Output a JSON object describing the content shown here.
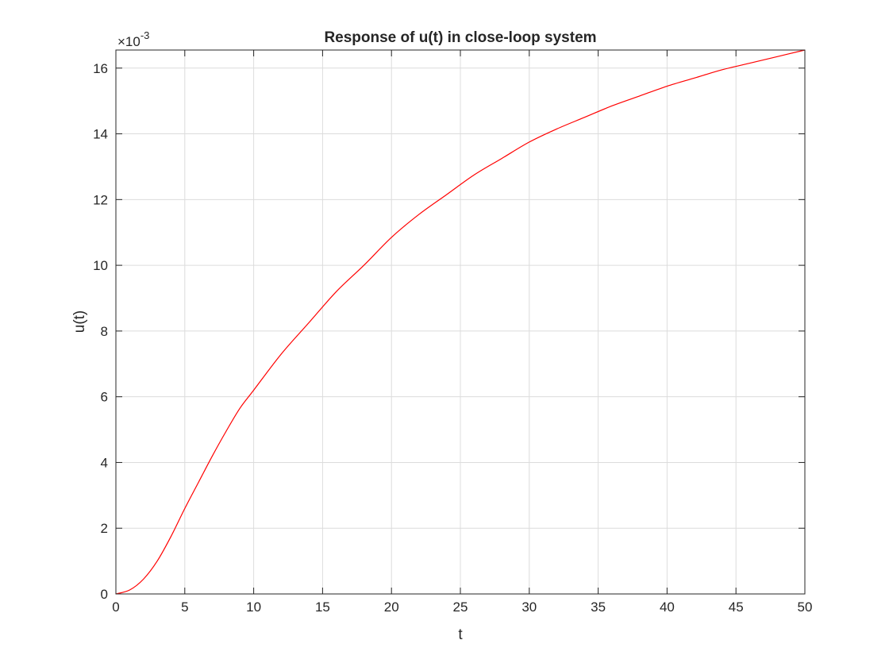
{
  "chart_data": {
    "type": "line",
    "title": "Response of u(t) in close-loop system",
    "xlabel": "t",
    "ylabel": "u(t)",
    "y_exponent_label": "×10",
    "y_exponent_power": "-3",
    "xlim": [
      0,
      50
    ],
    "ylim": [
      0,
      16.55
    ],
    "y_scale_factor": 0.001,
    "grid": true,
    "x_ticks": [
      "0",
      "5",
      "10",
      "15",
      "20",
      "25",
      "30",
      "35",
      "40",
      "45",
      "50"
    ],
    "y_ticks": [
      "0",
      "2",
      "4",
      "6",
      "8",
      "10",
      "12",
      "14",
      "16"
    ],
    "line_color": "#ff0000",
    "series": [
      {
        "x": [
          0,
          1,
          2,
          3,
          4,
          5,
          6,
          7,
          8,
          9,
          10,
          12,
          14,
          16,
          18,
          20,
          22,
          24,
          26,
          28,
          30,
          32,
          34,
          36,
          38,
          40,
          42,
          44,
          46,
          48,
          50
        ],
        "values": [
          0,
          0.12,
          0.45,
          1.0,
          1.75,
          2.6,
          3.4,
          4.2,
          4.95,
          5.65,
          6.2,
          7.3,
          8.25,
          9.2,
          10.0,
          10.85,
          11.55,
          12.15,
          12.75,
          13.25,
          13.75,
          14.15,
          14.5,
          14.85,
          15.15,
          15.45,
          15.7,
          15.95,
          16.15,
          16.35,
          16.55
        ]
      }
    ]
  }
}
